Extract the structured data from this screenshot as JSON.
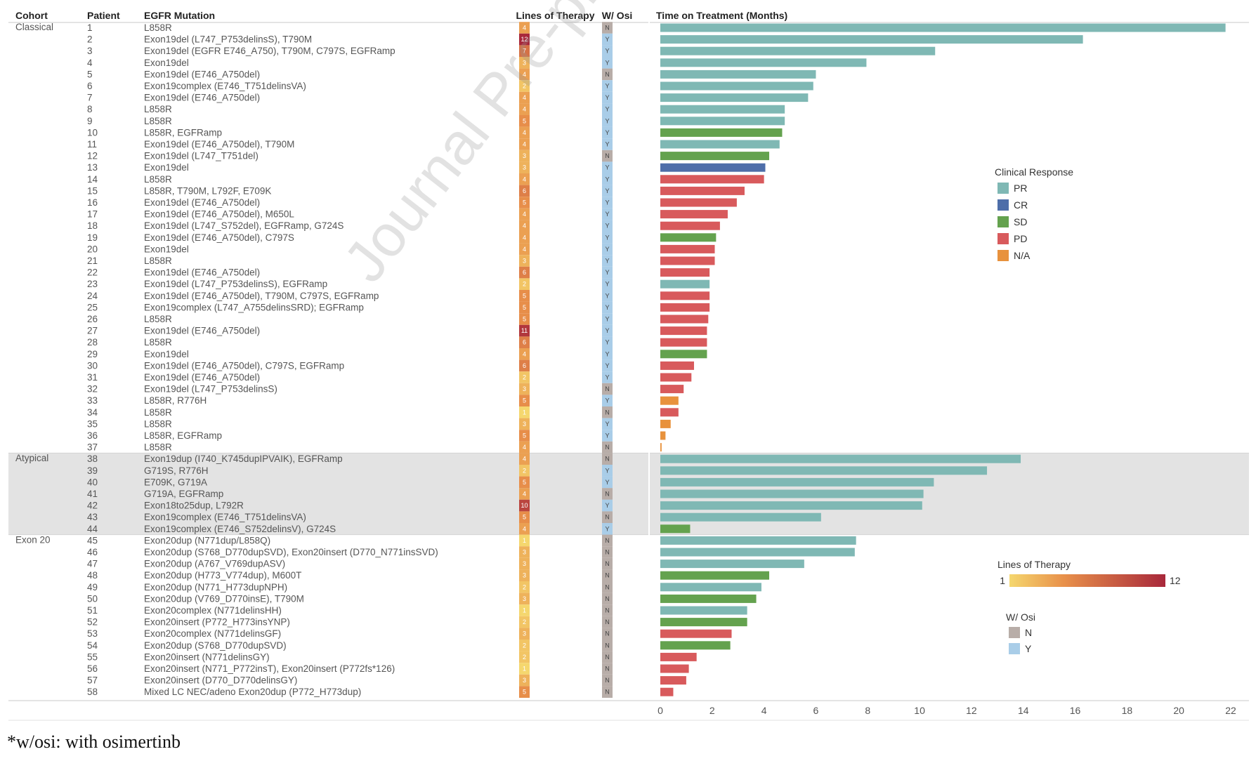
{
  "watermark": "Journal Pre-proof",
  "footnote": "*w/osi: with osimertinb",
  "colors": {
    "PR": "#7fb8b4",
    "CR": "#4e6ea9",
    "SD": "#64a24e",
    "PD": "#d85a5c",
    "NA": "#e8923d",
    "osi_N": "#b8ada8",
    "osi_Y": "#a9cde8",
    "band": "#e3e3e3"
  },
  "chart_data": {
    "type": "bar",
    "orientation": "horizontal",
    "columns": {
      "cohort": "Cohort",
      "patient": "Patient",
      "mutation": "EGFR Mutation",
      "lines": "Lines of Therapy",
      "osi": "W/ Osi",
      "time": "Time on Treatment (Months)"
    },
    "xlim": [
      0,
      22
    ],
    "xticks": [
      0,
      2,
      4,
      6,
      8,
      10,
      12,
      14,
      16,
      18,
      20,
      22
    ],
    "grid": false,
    "cohorts": [
      {
        "label": "Classical",
        "start": 0,
        "count": 37
      },
      {
        "label": "Atypical",
        "start": 37,
        "count": 7
      },
      {
        "label": "Exon 20",
        "start": 44,
        "count": 14
      }
    ],
    "rows": [
      {
        "patient": "1",
        "mutation": "L858R",
        "lines": 4,
        "osi": "N",
        "time": 21.8,
        "response": "PR"
      },
      {
        "patient": "2",
        "mutation": "Exon19del (L747_P753delinsS), T790M",
        "lines": 12,
        "osi": "Y",
        "time": 16.3,
        "response": "PR"
      },
      {
        "patient": "3",
        "mutation": "Exon19del (EGFR E746_A750), T790M, C797S, EGFRamp",
        "lines": 7,
        "osi": "Y",
        "time": 10.6,
        "response": "PR"
      },
      {
        "patient": "4",
        "mutation": "Exon19del",
        "lines": 3,
        "osi": "Y",
        "time": 7.95,
        "response": "PR"
      },
      {
        "patient": "5",
        "mutation": "Exon19del (E746_A750del)",
        "lines": 4,
        "osi": "N",
        "time": 6.0,
        "response": "PR"
      },
      {
        "patient": "6",
        "mutation": "Exon19complex (E746_T751delinsVA)",
        "lines": 2,
        "osi": "Y",
        "time": 5.9,
        "response": "PR"
      },
      {
        "patient": "7",
        "mutation": "Exon19del (E746_A750del)",
        "lines": 4,
        "osi": "Y",
        "time": 5.7,
        "response": "PR"
      },
      {
        "patient": "8",
        "mutation": "L858R",
        "lines": 4,
        "osi": "Y",
        "time": 4.8,
        "response": "PR"
      },
      {
        "patient": "9",
        "mutation": "L858R",
        "lines": 5,
        "osi": "Y",
        "time": 4.8,
        "response": "PR"
      },
      {
        "patient": "10",
        "mutation": "L858R, EGFRamp",
        "lines": 4,
        "osi": "Y",
        "time": 4.7,
        "response": "SD"
      },
      {
        "patient": "11",
        "mutation": "Exon19del (E746_A750del), T790M",
        "lines": 4,
        "osi": "Y",
        "time": 4.6,
        "response": "PR"
      },
      {
        "patient": "12",
        "mutation": "Exon19del (L747_T751del)",
        "lines": 3,
        "osi": "N",
        "time": 4.2,
        "response": "SD"
      },
      {
        "patient": "13",
        "mutation": "Exon19del",
        "lines": 3,
        "osi": "Y",
        "time": 4.05,
        "response": "CR"
      },
      {
        "patient": "14",
        "mutation": "L858R",
        "lines": 4,
        "osi": "Y",
        "time": 4.0,
        "response": "PD"
      },
      {
        "patient": "15",
        "mutation": "L858R, T790M, L792F, E709K",
        "lines": 6,
        "osi": "Y",
        "time": 3.25,
        "response": "PD"
      },
      {
        "patient": "16",
        "mutation": "Exon19del (E746_A750del)",
        "lines": 5,
        "osi": "Y",
        "time": 2.95,
        "response": "PD"
      },
      {
        "patient": "17",
        "mutation": "Exon19del (E746_A750del), M650L",
        "lines": 4,
        "osi": "Y",
        "time": 2.6,
        "response": "PD"
      },
      {
        "patient": "18",
        "mutation": "Exon19del (L747_S752del), EGFRamp, G724S",
        "lines": 4,
        "osi": "Y",
        "time": 2.3,
        "response": "PD"
      },
      {
        "patient": "19",
        "mutation": "Exon19del (E746_A750del), C797S",
        "lines": 4,
        "osi": "Y",
        "time": 2.15,
        "response": "SD"
      },
      {
        "patient": "20",
        "mutation": "Exon19del",
        "lines": 4,
        "osi": "Y",
        "time": 2.1,
        "response": "PD"
      },
      {
        "patient": "21",
        "mutation": "L858R",
        "lines": 3,
        "osi": "Y",
        "time": 2.1,
        "response": "PD"
      },
      {
        "patient": "22",
        "mutation": "Exon19del (E746_A750del)",
        "lines": 6,
        "osi": "Y",
        "time": 1.9,
        "response": "PD"
      },
      {
        "patient": "23",
        "mutation": "Exon19del (L747_P753delinsS), EGFRamp",
        "lines": 2,
        "osi": "Y",
        "time": 1.9,
        "response": "PR"
      },
      {
        "patient": "24",
        "mutation": "Exon19del (E746_A750del), T790M, C797S, EGFRamp",
        "lines": 5,
        "osi": "Y",
        "time": 1.9,
        "response": "PD"
      },
      {
        "patient": "25",
        "mutation": "Exon19complex (L747_A755delinsSRD); EGFRamp",
        "lines": 5,
        "osi": "Y",
        "time": 1.9,
        "response": "PD"
      },
      {
        "patient": "26",
        "mutation": "L858R",
        "lines": 5,
        "osi": "Y",
        "time": 1.85,
        "response": "PD"
      },
      {
        "patient": "27",
        "mutation": "Exon19del (E746_A750del)",
        "lines": 11,
        "osi": "Y",
        "time": 1.8,
        "response": "PD"
      },
      {
        "patient": "28",
        "mutation": "L858R",
        "lines": 6,
        "osi": "Y",
        "time": 1.8,
        "response": "PD"
      },
      {
        "patient": "29",
        "mutation": "Exon19del",
        "lines": 4,
        "osi": "Y",
        "time": 1.8,
        "response": "SD"
      },
      {
        "patient": "30",
        "mutation": "Exon19del (E746_A750del), C797S, EGFRamp",
        "lines": 6,
        "osi": "Y",
        "time": 1.3,
        "response": "PD"
      },
      {
        "patient": "31",
        "mutation": "Exon19del (E746_A750del)",
        "lines": 2,
        "osi": "Y",
        "time": 1.2,
        "response": "PD"
      },
      {
        "patient": "32",
        "mutation": "Exon19del (L747_P753delinsS)",
        "lines": 3,
        "osi": "N",
        "time": 0.9,
        "response": "PD"
      },
      {
        "patient": "33",
        "mutation": "L858R, R776H",
        "lines": 5,
        "osi": "Y",
        "time": 0.7,
        "response": "NA"
      },
      {
        "patient": "34",
        "mutation": "L858R",
        "lines": 1,
        "osi": "N",
        "time": 0.7,
        "response": "PD"
      },
      {
        "patient": "35",
        "mutation": "L858R",
        "lines": 3,
        "osi": "Y",
        "time": 0.4,
        "response": "NA"
      },
      {
        "patient": "36",
        "mutation": "L858R, EGFRamp",
        "lines": 5,
        "osi": "Y",
        "time": 0.2,
        "response": "NA"
      },
      {
        "patient": "37",
        "mutation": "L858R",
        "lines": 4,
        "osi": "N",
        "time": 0.05,
        "response": "NA"
      },
      {
        "patient": "38",
        "mutation": "Exon19dup (I740_K745dupIPVAIK), EGFRamp",
        "lines": 4,
        "osi": "N",
        "time": 13.9,
        "response": "PR"
      },
      {
        "patient": "39",
        "mutation": "G719S, R776H",
        "lines": 2,
        "osi": "Y",
        "time": 12.6,
        "response": "PR"
      },
      {
        "patient": "40",
        "mutation": "E709K, G719A",
        "lines": 5,
        "osi": "Y",
        "time": 10.55,
        "response": "PR"
      },
      {
        "patient": "41",
        "mutation": "G719A, EGFRamp",
        "lines": 4,
        "osi": "N",
        "time": 10.15,
        "response": "PR"
      },
      {
        "patient": "42",
        "mutation": "Exon18to25dup, L792R",
        "lines": 10,
        "osi": "Y",
        "time": 10.1,
        "response": "PR"
      },
      {
        "patient": "43",
        "mutation": "Exon19complex (E746_T751delinsVA)",
        "lines": 5,
        "osi": "N",
        "time": 6.2,
        "response": "PR"
      },
      {
        "patient": "44",
        "mutation": "Exon19complex (E746_S752delinsV), G724S",
        "lines": 4,
        "osi": "Y",
        "time": 1.15,
        "response": "SD"
      },
      {
        "patient": "45",
        "mutation": "Exon20dup (N771dup/L858Q)",
        "lines": 1,
        "osi": "N",
        "time": 7.55,
        "response": "PR"
      },
      {
        "patient": "46",
        "mutation": "Exon20dup (S768_D770dupSVD), Exon20insert (D770_N771insSVD)",
        "lines": 3,
        "osi": "N",
        "time": 7.5,
        "response": "PR"
      },
      {
        "patient": "47",
        "mutation": "Exon20dup (A767_V769dupASV)",
        "lines": 3,
        "osi": "N",
        "time": 5.55,
        "response": "PR"
      },
      {
        "patient": "48",
        "mutation": "Exon20dup (H773_V774dup), M600T",
        "lines": 3,
        "osi": "N",
        "time": 4.2,
        "response": "SD"
      },
      {
        "patient": "49",
        "mutation": "Exon20dup (N771_H773dupNPH)",
        "lines": 2,
        "osi": "N",
        "time": 3.9,
        "response": "PR"
      },
      {
        "patient": "50",
        "mutation": "Exon20dup (V769_D770insE), T790M",
        "lines": 3,
        "osi": "N",
        "time": 3.7,
        "response": "SD"
      },
      {
        "patient": "51",
        "mutation": "Exon20complex (N771delinsHH)",
        "lines": 1,
        "osi": "N",
        "time": 3.35,
        "response": "PR"
      },
      {
        "patient": "52",
        "mutation": "Exon20insert (P772_H773insYNP)",
        "lines": 2,
        "osi": "N",
        "time": 3.35,
        "response": "SD"
      },
      {
        "patient": "53",
        "mutation": "Exon20complex (N771delinsGF)",
        "lines": 3,
        "osi": "N",
        "time": 2.75,
        "response": "PD"
      },
      {
        "patient": "54",
        "mutation": "Exon20dup (S768_D770dupSVD)",
        "lines": 2,
        "osi": "N",
        "time": 2.7,
        "response": "SD"
      },
      {
        "patient": "55",
        "mutation": "Exon20insert (N771delinsGY)",
        "lines": 2,
        "osi": "N",
        "time": 1.4,
        "response": "PD"
      },
      {
        "patient": "56",
        "mutation": "Exon20insert (N771_P772insT), Exon20insert (P772fs*126)",
        "lines": 1,
        "osi": "N",
        "time": 1.1,
        "response": "PD"
      },
      {
        "patient": "57",
        "mutation": "Exon20insert (D770_D770delinsGY)",
        "lines": 3,
        "osi": "N",
        "time": 1.0,
        "response": "PD"
      },
      {
        "patient": "58",
        "mutation": "Mixed LC NEC/adeno Exon20dup (P772_H773dup)",
        "lines": 5,
        "osi": "N",
        "time": 0.5,
        "response": "PD"
      }
    ],
    "legend_response": {
      "title": "Clinical Response",
      "placement": "right",
      "items": [
        {
          "key": "PR",
          "label": "PR"
        },
        {
          "key": "CR",
          "label": "CR"
        },
        {
          "key": "SD",
          "label": "SD"
        },
        {
          "key": "PD",
          "label": "PD"
        },
        {
          "key": "NA",
          "label": "N/A"
        }
      ]
    },
    "legend_lines": {
      "title": "Lines of Therapy",
      "min_label": "1",
      "max_label": "12",
      "min": 1,
      "max": 12,
      "color_low": "#f5d76e",
      "color_mid": "#e8904a",
      "color_high": "#a8283b"
    },
    "legend_osi": {
      "title": "W/ Osi",
      "items": [
        {
          "key": "osi_N",
          "label": "N"
        },
        {
          "key": "osi_Y",
          "label": "Y"
        }
      ]
    }
  }
}
